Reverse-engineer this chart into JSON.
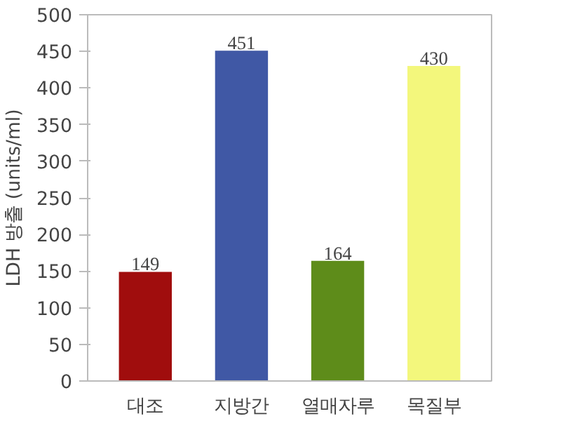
{
  "chart_data": {
    "type": "bar",
    "ylabel": "LDH 방출 (units/ml)",
    "categories": [
      "대조",
      "지방간",
      "열매자루",
      "목질부"
    ],
    "values": [
      149,
      451,
      164,
      430
    ],
    "colors": [
      "#a00d0d",
      "#4058a5",
      "#5e8c1a",
      "#f3f77c"
    ],
    "ylim": [
      0,
      500
    ],
    "yticks": [
      0,
      50,
      100,
      150,
      200,
      250,
      300,
      350,
      400,
      450,
      500
    ],
    "data_labels": true,
    "grid": false
  }
}
